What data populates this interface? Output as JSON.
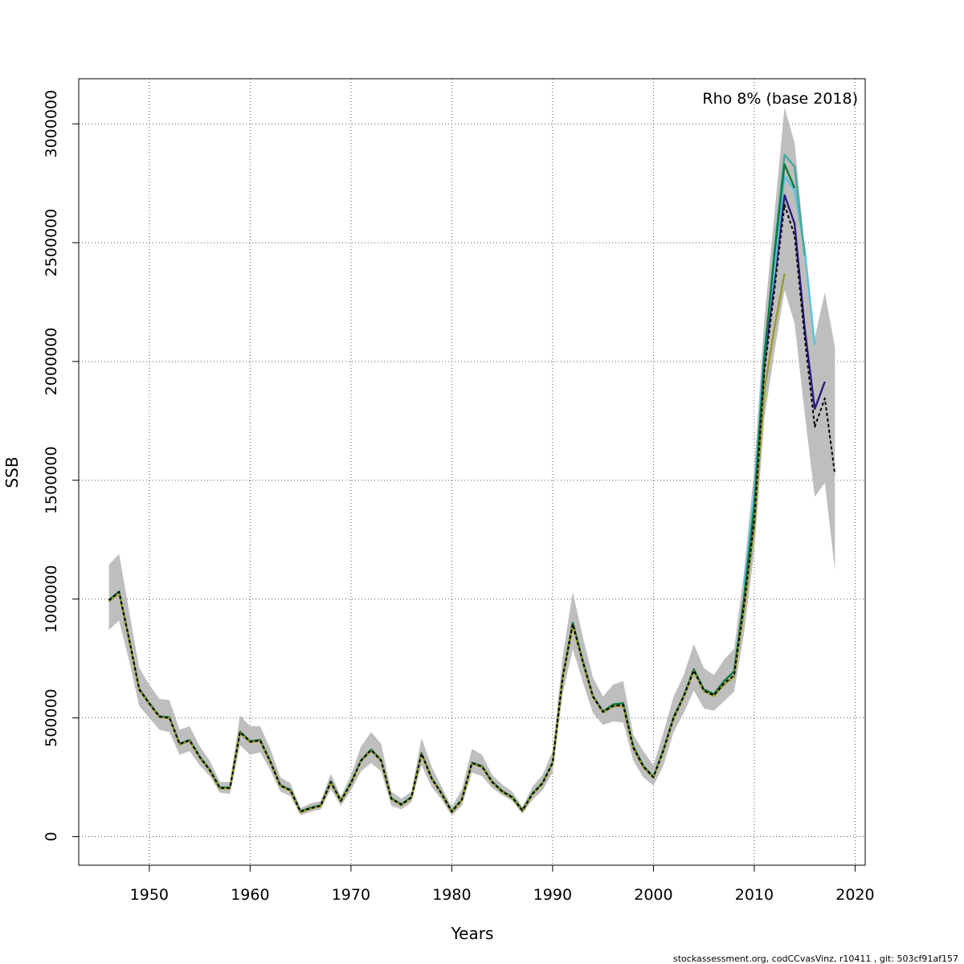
{
  "chart_data": {
    "type": "line",
    "title": "",
    "annotation": "Rho 8% (base 2018)",
    "xlabel": "Years",
    "ylabel": "SSB",
    "xlim": [
      1943,
      2021
    ],
    "ylim": [
      -120000,
      3190000
    ],
    "x_ticks": [
      1950,
      1960,
      1970,
      1980,
      1990,
      2000,
      2010,
      2020
    ],
    "y_ticks": [
      0,
      500000,
      1000000,
      1500000,
      2000000,
      2500000,
      3000000
    ],
    "x_tick_labels": [
      "1950",
      "1960",
      "1970",
      "1980",
      "1990",
      "2000",
      "2010",
      "2020"
    ],
    "y_tick_labels": [
      "0",
      "500000",
      "1000000",
      "1500000",
      "2000000",
      "2500000",
      "3000000"
    ],
    "grid": true,
    "footer": "stockassessment.org, codCCvasVinz, r10411 , git: 503cf91af157",
    "confidence_band": {
      "color": "#bebebe",
      "x": [
        1946,
        1947,
        1948,
        1949,
        1950,
        1951,
        1952,
        1953,
        1954,
        1955,
        1956,
        1957,
        1958,
        1959,
        1960,
        1961,
        1962,
        1963,
        1964,
        1965,
        1966,
        1967,
        1968,
        1969,
        1970,
        1971,
        1972,
        1973,
        1974,
        1975,
        1976,
        1977,
        1978,
        1979,
        1980,
        1981,
        1982,
        1983,
        1984,
        1985,
        1986,
        1987,
        1988,
        1989,
        1990,
        1991,
        1992,
        1993,
        1994,
        1995,
        1996,
        1997,
        1998,
        1999,
        2000,
        2001,
        2002,
        2003,
        2004,
        2005,
        2006,
        2007,
        2008,
        2009,
        2010,
        2011,
        2012,
        2013,
        2014,
        2015,
        2016,
        2017,
        2018
      ],
      "upper": [
        1145000,
        1190000,
        950000,
        710000,
        640000,
        580000,
        575000,
        450000,
        465000,
        380000,
        320000,
        230000,
        230000,
        510000,
        465000,
        465000,
        370000,
        250000,
        225000,
        120000,
        140000,
        150000,
        265000,
        170000,
        260000,
        380000,
        440000,
        390000,
        190000,
        160000,
        190000,
        415000,
        295000,
        210000,
        125000,
        200000,
        370000,
        345000,
        260000,
        220000,
        190000,
        125000,
        210000,
        260000,
        360000,
        760000,
        1030000,
        840000,
        670000,
        590000,
        640000,
        655000,
        430000,
        360000,
        300000,
        440000,
        590000,
        680000,
        810000,
        710000,
        680000,
        745000,
        790000,
        1120000,
        1550000,
        2180000,
        2620000,
        3070000,
        2920000,
        2480000,
        2100000,
        2290000,
        2060000
      ],
      "lower": [
        870000,
        910000,
        740000,
        550000,
        500000,
        450000,
        440000,
        345000,
        360000,
        300000,
        255000,
        185000,
        180000,
        385000,
        345000,
        355000,
        280000,
        190000,
        170000,
        90000,
        105000,
        115000,
        200000,
        130000,
        195000,
        275000,
        310000,
        275000,
        130000,
        115000,
        145000,
        300000,
        210000,
        155000,
        88000,
        130000,
        270000,
        255000,
        205000,
        175000,
        150000,
        95000,
        155000,
        195000,
        270000,
        600000,
        790000,
        650000,
        520000,
        470000,
        485000,
        480000,
        320000,
        250000,
        215000,
        300000,
        440000,
        520000,
        615000,
        540000,
        530000,
        570000,
        610000,
        860000,
        1200000,
        1760000,
        2040000,
        2300000,
        2160000,
        1780000,
        1430000,
        1490000,
        1120000
      ]
    },
    "series": [
      {
        "color": "#000000",
        "dashed": true,
        "x": [
          1946,
          1947,
          1948,
          1949,
          1950,
          1951,
          1952,
          1953,
          1954,
          1955,
          1956,
          1957,
          1958,
          1959,
          1960,
          1961,
          1962,
          1963,
          1964,
          1965,
          1966,
          1967,
          1968,
          1969,
          1970,
          1971,
          1972,
          1973,
          1974,
          1975,
          1976,
          1977,
          1978,
          1979,
          1980,
          1981,
          1982,
          1983,
          1984,
          1985,
          1986,
          1987,
          1988,
          1989,
          1990,
          1991,
          1992,
          1993,
          1994,
          1995,
          1996,
          1997,
          1998,
          1999,
          2000,
          2001,
          2002,
          2003,
          2004,
          2005,
          2006,
          2007,
          2008,
          2009,
          2010,
          2011,
          2012,
          2013,
          2014,
          2015,
          2016,
          2017,
          2018
        ],
        "values": [
          995000,
          1030000,
          830000,
          620000,
          560000,
          505000,
          500000,
          390000,
          405000,
          335000,
          280000,
          205000,
          205000,
          440000,
          400000,
          405000,
          315000,
          215000,
          195000,
          105000,
          120000,
          130000,
          230000,
          150000,
          225000,
          320000,
          365000,
          320000,
          160000,
          135000,
          165000,
          350000,
          245000,
          180000,
          105000,
          155000,
          310000,
          295000,
          230000,
          190000,
          165000,
          110000,
          180000,
          225000,
          310000,
          670000,
          895000,
          735000,
          590000,
          525000,
          550000,
          555000,
          375000,
          295000,
          250000,
          365000,
          500000,
          590000,
          700000,
          615000,
          595000,
          645000,
          680000,
          980000,
          1330000,
          1960000,
          2300000,
          2660000,
          2530000,
          2100000,
          1725000,
          1845000,
          1525000
        ]
      },
      {
        "color": "#2c1a80",
        "x": [
          2009,
          2010,
          2011,
          2012,
          2013,
          2014,
          2015,
          2016,
          2017
        ],
        "values": [
          990000,
          1345000,
          1990000,
          2340000,
          2700000,
          2580000,
          2140000,
          1800000,
          1915000
        ]
      },
      {
        "color": "#5bc0de",
        "x": [
          2009,
          2010,
          2011,
          2012,
          2013,
          2014,
          2015,
          2016
        ],
        "values": [
          1060000,
          1445000,
          2055000,
          2380000,
          2780000,
          2720000,
          2470000,
          2070000
        ]
      },
      {
        "color": "#45a79a",
        "x": [
          2009,
          2010,
          2011,
          2012,
          2013,
          2014,
          2015
        ],
        "values": [
          1020000,
          1385000,
          2010000,
          2470000,
          2870000,
          2820000,
          2445000
        ]
      },
      {
        "color": "#0f7a3e",
        "x": [
          1946,
          1947,
          1948,
          1949,
          1950,
          1951,
          1952,
          1953,
          1954,
          1955,
          1956,
          1957,
          1958,
          1959,
          1960,
          1961,
          1962,
          1963,
          1964,
          1965,
          1966,
          1967,
          1968,
          1969,
          1970,
          1971,
          1972,
          1973,
          1974,
          1975,
          1976,
          1977,
          1978,
          1979,
          1980,
          1981,
          1982,
          1983,
          1984,
          1985,
          1986,
          1987,
          1988,
          1989,
          1990,
          1991,
          1992,
          1993,
          1994,
          1995,
          1996,
          1997,
          1998,
          1999,
          2000,
          2001,
          2002,
          2003,
          2004,
          2005,
          2006,
          2007,
          2008,
          2009,
          2010,
          2011,
          2012,
          2013,
          2014
        ],
        "values": [
          995000,
          1032000,
          830000,
          622000,
          562000,
          507000,
          502000,
          392000,
          407000,
          337000,
          282000,
          207000,
          207000,
          442000,
          402000,
          407000,
          317000,
          217000,
          197000,
          107000,
          122000,
          132000,
          232000,
          152000,
          227000,
          322000,
          367000,
          322000,
          162000,
          137000,
          167000,
          352000,
          247000,
          182000,
          107000,
          157000,
          312000,
          297000,
          232000,
          192000,
          167000,
          112000,
          182000,
          227000,
          312000,
          672000,
          900000,
          738000,
          592000,
          527000,
          557000,
          562000,
          380000,
          298000,
          252000,
          368000,
          503000,
          593000,
          705000,
          620000,
          600000,
          655000,
          695000,
          1010000,
          1390000,
          2020000,
          2450000,
          2830000,
          2730000
        ]
      },
      {
        "color": "#9a9a2a",
        "x": [
          1946,
          1947,
          1948,
          1949,
          1950,
          1951,
          1952,
          1953,
          1954,
          1955,
          1956,
          1957,
          1958,
          1959,
          1960,
          1961,
          1962,
          1963,
          1964,
          1965,
          1966,
          1967,
          1968,
          1969,
          1970,
          1971,
          1972,
          1973,
          1974,
          1975,
          1976,
          1977,
          1978,
          1979,
          1980,
          1981,
          1982,
          1983,
          1984,
          1985,
          1986,
          1987,
          1988,
          1989,
          1990,
          1991,
          1992,
          1993,
          1994,
          1995,
          1996,
          1997,
          1998,
          1999,
          2000,
          2001,
          2002,
          2003,
          2004,
          2005,
          2006,
          2007,
          2008,
          2009,
          2010,
          2011,
          2012,
          2013
        ],
        "values": [
          990000,
          1025000,
          825000,
          618000,
          558000,
          503000,
          498000,
          388000,
          403000,
          333000,
          278000,
          203000,
          203000,
          438000,
          398000,
          403000,
          313000,
          213000,
          193000,
          103000,
          118000,
          128000,
          228000,
          148000,
          223000,
          318000,
          362000,
          318000,
          158000,
          133000,
          163000,
          348000,
          243000,
          178000,
          103000,
          153000,
          308000,
          293000,
          228000,
          188000,
          163000,
          108000,
          178000,
          223000,
          308000,
          665000,
          890000,
          730000,
          588000,
          523000,
          548000,
          550000,
          372000,
          292000,
          248000,
          362000,
          497000,
          587000,
          697000,
          612000,
          592000,
          640000,
          672000,
          960000,
          1300000,
          1880000,
          2140000,
          2370000
        ]
      }
    ]
  }
}
